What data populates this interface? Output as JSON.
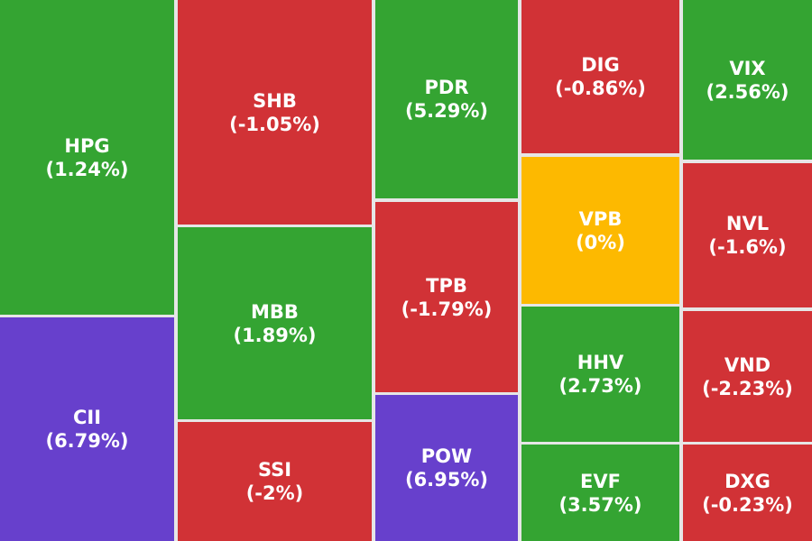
{
  "chart_data": {
    "type": "treemap",
    "colors": {
      "up": "#34a432",
      "down": "#d13236",
      "unchanged": "#fdb900",
      "ceiling": "#6740cc"
    },
    "items": [
      {
        "ticker": "HPG",
        "change_label": "(1.24%)",
        "change": 1.24,
        "status": "up"
      },
      {
        "ticker": "CII",
        "change_label": "(6.79%)",
        "change": 6.79,
        "status": "ceiling"
      },
      {
        "ticker": "SHB",
        "change_label": "(-1.05%)",
        "change": -1.05,
        "status": "down"
      },
      {
        "ticker": "MBB",
        "change_label": "(1.89%)",
        "change": 1.89,
        "status": "up"
      },
      {
        "ticker": "SSI",
        "change_label": "(-2%)",
        "change": -2,
        "status": "down"
      },
      {
        "ticker": "PDR",
        "change_label": "(5.29%)",
        "change": 5.29,
        "status": "up"
      },
      {
        "ticker": "TPB",
        "change_label": "(-1.79%)",
        "change": -1.79,
        "status": "down"
      },
      {
        "ticker": "POW",
        "change_label": "(6.95%)",
        "change": 6.95,
        "status": "ceiling"
      },
      {
        "ticker": "DIG",
        "change_label": "(-0.86%)",
        "change": -0.86,
        "status": "down"
      },
      {
        "ticker": "VPB",
        "change_label": "(0%)",
        "change": 0,
        "status": "unchanged"
      },
      {
        "ticker": "HHV",
        "change_label": "(2.73%)",
        "change": 2.73,
        "status": "up"
      },
      {
        "ticker": "EVF",
        "change_label": "(3.57%)",
        "change": 3.57,
        "status": "up"
      },
      {
        "ticker": "VIX",
        "change_label": "(2.56%)",
        "change": 2.56,
        "status": "up"
      },
      {
        "ticker": "NVL",
        "change_label": "(-1.6%)",
        "change": -1.6,
        "status": "down"
      },
      {
        "ticker": "VND",
        "change_label": "(-2.23%)",
        "change": -2.23,
        "status": "down"
      },
      {
        "ticker": "DXG",
        "change_label": "(-0.23%)",
        "change": -0.23,
        "status": "down"
      }
    ]
  }
}
